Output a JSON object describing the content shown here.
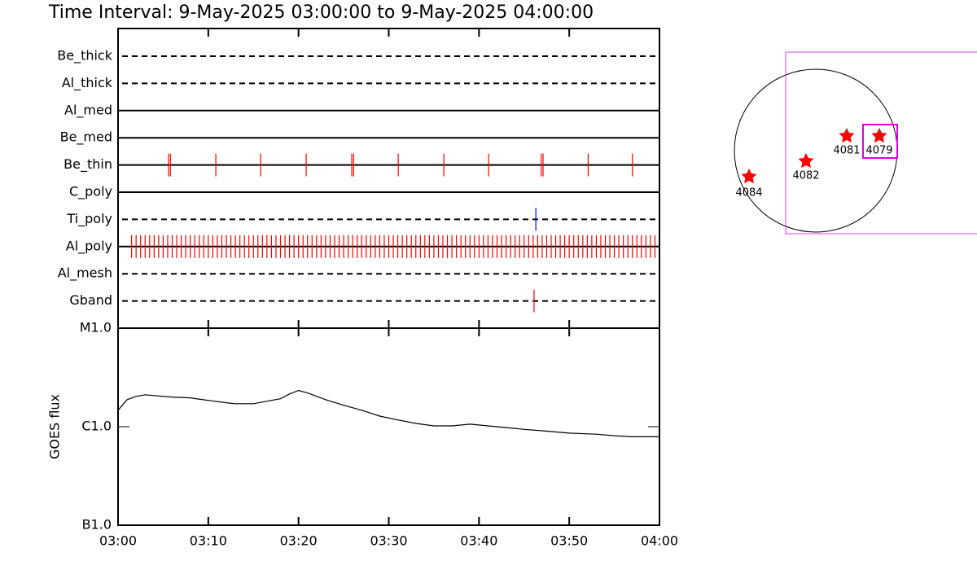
{
  "chart_data": [
    {
      "type": "timeline",
      "title": "Time Interval:  9-May-2025 03:00:00 to  9-May-2025 04:00:00",
      "xlim": [
        "03:00",
        "04:00"
      ],
      "series": [
        {
          "name": "Be_thick",
          "line": "dashed",
          "color": "#ff0000",
          "x": []
        },
        {
          "name": "Al_thick",
          "line": "dashed",
          "color": "#ff0000",
          "x": []
        },
        {
          "name": "Al_med",
          "line": "solid",
          "color": "#ff0000",
          "x": []
        },
        {
          "name": "Be_med",
          "line": "solid",
          "color": "#ff0000",
          "x": []
        },
        {
          "name": "Be_thin",
          "line": "solid",
          "color": "#ff0000",
          "x": [
            "03:05:36",
            "03:05:48",
            "03:10:50",
            "03:15:48",
            "03:20:51",
            "03:25:54",
            "03:26:06",
            "03:31:03",
            "03:36:06",
            "03:41:04",
            "03:46:54",
            "03:47:06",
            "03:52:06",
            "03:57:00"
          ]
        },
        {
          "name": "C_poly",
          "line": "solid",
          "color": "#ff0000",
          "x": []
        },
        {
          "name": "Ti_poly",
          "line": "dashed",
          "color": "#0000ff",
          "x": [
            "03:46:18"
          ]
        },
        {
          "name": "Al_poly",
          "line": "solid",
          "color": "#ff0000",
          "x": [
            "03:01:30",
            "03:02:00",
            "03:02:30",
            "03:03:00",
            "03:03:30",
            "03:04:00",
            "03:04:30",
            "03:05:00",
            "03:05:30",
            "03:06:00",
            "03:06:30",
            "03:07:00",
            "03:07:30",
            "03:08:00",
            "03:08:30",
            "03:09:00",
            "03:09:30",
            "03:10:00",
            "03:10:30",
            "03:11:00",
            "03:11:30",
            "03:12:00",
            "03:12:30",
            "03:13:00",
            "03:13:30",
            "03:14:00",
            "03:14:30",
            "03:15:00",
            "03:15:30",
            "03:16:00",
            "03:16:30",
            "03:17:00",
            "03:17:30",
            "03:18:00",
            "03:18:30",
            "03:19:00",
            "03:19:30",
            "03:20:00",
            "03:20:30",
            "03:21:00",
            "03:21:30",
            "03:22:00",
            "03:22:30",
            "03:23:00",
            "03:23:30",
            "03:24:00",
            "03:24:30",
            "03:25:00",
            "03:25:30",
            "03:26:00",
            "03:26:30",
            "03:27:00",
            "03:27:30",
            "03:28:00",
            "03:28:30",
            "03:29:00",
            "03:29:30",
            "03:30:00",
            "03:30:30",
            "03:31:00",
            "03:31:30",
            "03:32:00",
            "03:32:30",
            "03:33:00",
            "03:33:30",
            "03:34:00",
            "03:34:30",
            "03:35:00",
            "03:35:30",
            "03:36:00",
            "03:36:30",
            "03:37:00",
            "03:37:30",
            "03:38:00",
            "03:38:30",
            "03:39:00",
            "03:39:30",
            "03:40:00",
            "03:40:30",
            "03:41:00",
            "03:41:30",
            "03:42:00",
            "03:42:30",
            "03:43:00",
            "03:43:30",
            "03:44:00",
            "03:44:30",
            "03:45:00",
            "03:45:30",
            "03:46:00",
            "03:46:30",
            "03:47:00",
            "03:47:30",
            "03:48:00",
            "03:48:30",
            "03:49:00",
            "03:49:30",
            "03:50:00",
            "03:50:30",
            "03:51:00",
            "03:51:30",
            "03:52:00",
            "03:52:30",
            "03:53:00",
            "03:53:30",
            "03:54:00",
            "03:54:30",
            "03:55:00",
            "03:55:30",
            "03:56:00",
            "03:56:30",
            "03:57:00",
            "03:57:30",
            "03:58:00",
            "03:58:30",
            "03:59:00",
            "03:59:30"
          ]
        },
        {
          "name": "Al_mesh",
          "line": "dashed",
          "color": "#ff0000",
          "x": []
        },
        {
          "name": "Gband",
          "line": "dashed",
          "color": "#ff0000",
          "x": [
            "03:46:06"
          ]
        }
      ]
    },
    {
      "type": "line",
      "y_label": "GOES flux",
      "log_scale": true,
      "color": "#000000",
      "xlim": [
        "03:00",
        "04:00"
      ],
      "xticks": [
        "03:00",
        "03:10",
        "03:20",
        "03:30",
        "03:40",
        "03:50",
        "04:00"
      ],
      "ylim": [
        1e-07,
        1e-05
      ],
      "yticks": [
        {
          "value": 1e-07,
          "label": "B1.0"
        },
        {
          "value": 1e-06,
          "label": "C1.0"
        },
        {
          "value": 1e-05,
          "label": "M1.0"
        }
      ],
      "x": [
        "03:00",
        "03:01",
        "03:02",
        "03:03",
        "03:04",
        "03:06",
        "03:08",
        "03:10",
        "03:12",
        "03:13",
        "03:15",
        "03:17",
        "03:18",
        "03:19",
        "03:20",
        "03:21",
        "03:23",
        "03:25",
        "03:27",
        "03:29",
        "03:31",
        "03:33",
        "03:35",
        "03:37",
        "03:39",
        "03:41",
        "03:43",
        "03:45",
        "03:47",
        "03:50",
        "03:53",
        "03:55",
        "03:57",
        "04:00"
      ],
      "values": [
        1.47e-06,
        1.88e-06,
        2.03e-06,
        2.11e-06,
        2.07e-06,
        2e-06,
        1.96e-06,
        1.85e-06,
        1.75e-06,
        1.71e-06,
        1.71e-06,
        1.85e-06,
        1.92e-06,
        2.15e-06,
        2.33e-06,
        2.2e-06,
        1.88e-06,
        1.65e-06,
        1.47e-06,
        1.28e-06,
        1.17e-06,
        1.08e-06,
        1.02e-06,
        1.02e-06,
        1.06e-06,
        1.02e-06,
        9.8e-07,
        9.4e-07,
        9.1e-07,
        8.6e-07,
        8.4e-07,
        8.1e-07,
        7.9e-07,
        7.9e-07
      ]
    },
    {
      "type": "map",
      "regions": [
        "4084",
        "4082",
        "4081",
        "4079"
      ]
    }
  ]
}
